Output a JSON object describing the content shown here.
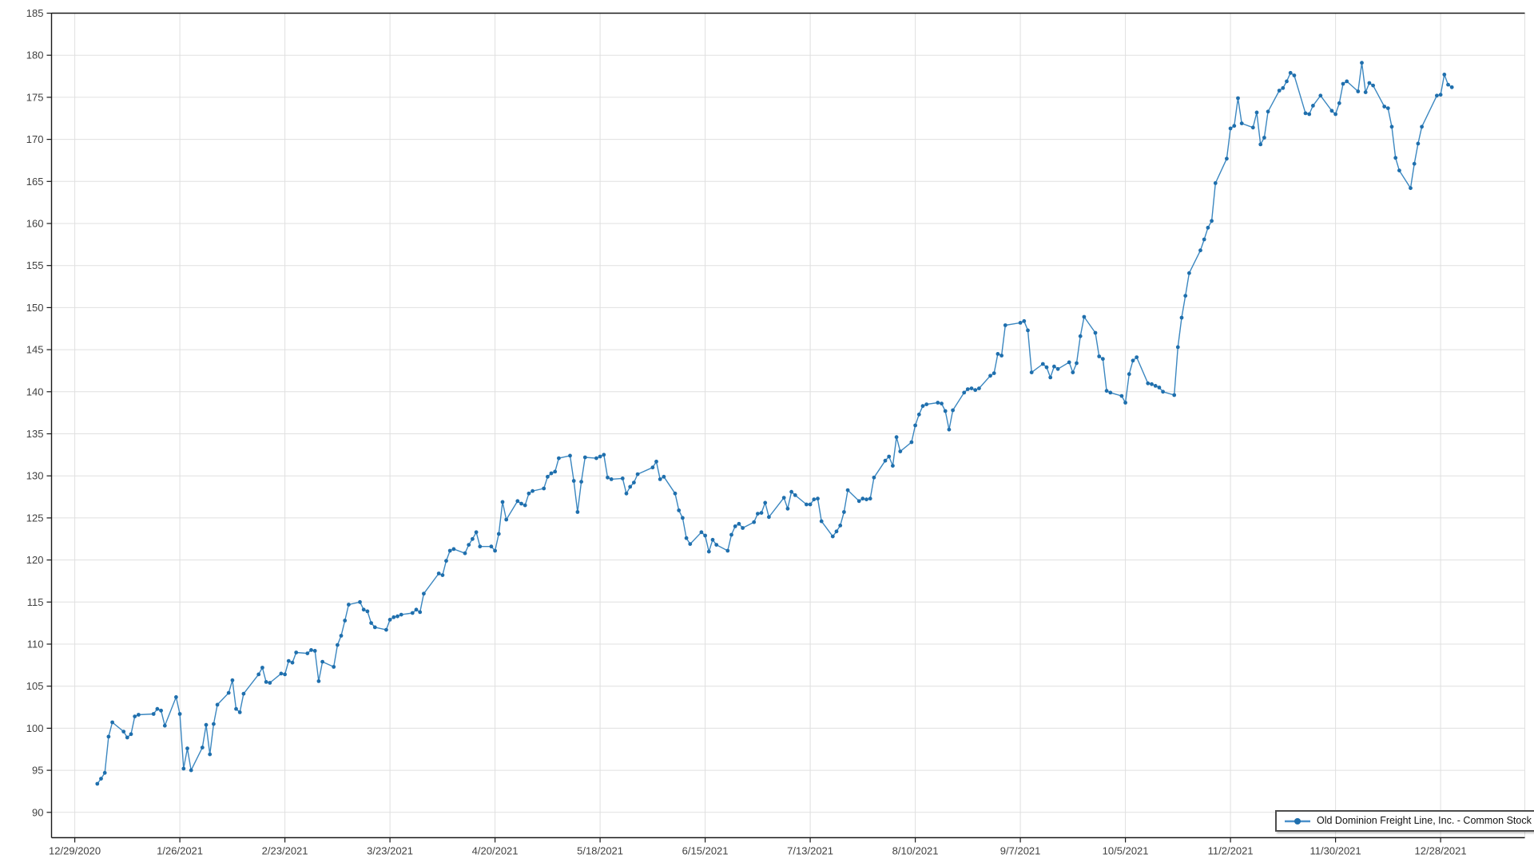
{
  "legend": {
    "label": "Old Dominion Freight Line, Inc. - Common Stock"
  },
  "colors": {
    "line": "#3b87c0",
    "marker": "#1f6fad",
    "grid": "#e0e0e0",
    "axis": "#1a1a1a",
    "tick_label": "#404040",
    "legend_border": "#4d4d4d"
  },
  "chart_data": {
    "type": "line",
    "title": "",
    "xlabel": "",
    "ylabel": "",
    "grid": true,
    "legend_position": "bottom-right",
    "y_ticks": [
      90,
      95,
      100,
      105,
      110,
      115,
      120,
      125,
      130,
      135,
      140,
      145,
      150,
      155,
      160,
      165,
      170,
      175,
      180,
      185
    ],
    "ylim": [
      87.05,
      185
    ],
    "x_axis_start": "2020-12-29",
    "x_tick_interval_days": 28,
    "x_tick_labels": [
      "12/29/2020",
      "1/26/2021",
      "2/23/2021",
      "3/23/2021",
      "4/20/2021",
      "5/18/2021",
      "6/15/2021",
      "7/13/2021",
      "8/10/2021",
      "9/7/2021",
      "10/5/2021",
      "11/2/2021",
      "11/30/2021",
      "12/28/2021"
    ],
    "series": [
      {
        "name": "Old Dominion Freight Line, Inc. - Common Stock",
        "points": [
          [
            "2021-01-04",
            93.4
          ],
          [
            "2021-01-05",
            94.0
          ],
          [
            "2021-01-06",
            94.7
          ],
          [
            "2021-01-07",
            99.0
          ],
          [
            "2021-01-08",
            100.7
          ],
          [
            "2021-01-11",
            99.6
          ],
          [
            "2021-01-12",
            98.9
          ],
          [
            "2021-01-13",
            99.3
          ],
          [
            "2021-01-14",
            101.4
          ],
          [
            "2021-01-15",
            101.6
          ],
          [
            "2021-01-19",
            101.7
          ],
          [
            "2021-01-20",
            102.3
          ],
          [
            "2021-01-21",
            102.1
          ],
          [
            "2021-01-22",
            100.3
          ],
          [
            "2021-01-25",
            103.7
          ],
          [
            "2021-01-26",
            101.7
          ],
          [
            "2021-01-27",
            95.2
          ],
          [
            "2021-01-28",
            97.6
          ],
          [
            "2021-01-29",
            95.0
          ],
          [
            "2021-02-01",
            97.7
          ],
          [
            "2021-02-02",
            100.4
          ],
          [
            "2021-02-03",
            96.9
          ],
          [
            "2021-02-04",
            100.5
          ],
          [
            "2021-02-05",
            102.8
          ],
          [
            "2021-02-08",
            104.2
          ],
          [
            "2021-02-09",
            105.7
          ],
          [
            "2021-02-10",
            102.3
          ],
          [
            "2021-02-11",
            101.9
          ],
          [
            "2021-02-12",
            104.1
          ],
          [
            "2021-02-16",
            106.4
          ],
          [
            "2021-02-17",
            107.2
          ],
          [
            "2021-02-18",
            105.5
          ],
          [
            "2021-02-19",
            105.4
          ],
          [
            "2021-02-22",
            106.5
          ],
          [
            "2021-02-23",
            106.4
          ],
          [
            "2021-02-24",
            108.0
          ],
          [
            "2021-02-25",
            107.8
          ],
          [
            "2021-02-26",
            109.0
          ],
          [
            "2021-03-01",
            108.9
          ],
          [
            "2021-03-02",
            109.3
          ],
          [
            "2021-03-03",
            109.2
          ],
          [
            "2021-03-04",
            105.6
          ],
          [
            "2021-03-05",
            107.9
          ],
          [
            "2021-03-08",
            107.3
          ],
          [
            "2021-03-09",
            109.9
          ],
          [
            "2021-03-10",
            111.0
          ],
          [
            "2021-03-11",
            112.8
          ],
          [
            "2021-03-12",
            114.7
          ],
          [
            "2021-03-15",
            115.0
          ],
          [
            "2021-03-16",
            114.1
          ],
          [
            "2021-03-17",
            113.9
          ],
          [
            "2021-03-18",
            112.5
          ],
          [
            "2021-03-19",
            112.0
          ],
          [
            "2021-03-22",
            111.7
          ],
          [
            "2021-03-23",
            112.9
          ],
          [
            "2021-03-24",
            113.2
          ],
          [
            "2021-03-25",
            113.3
          ],
          [
            "2021-03-26",
            113.5
          ],
          [
            "2021-03-29",
            113.7
          ],
          [
            "2021-03-30",
            114.1
          ],
          [
            "2021-03-31",
            113.8
          ],
          [
            "2021-04-01",
            116.0
          ],
          [
            "2021-04-05",
            118.4
          ],
          [
            "2021-04-06",
            118.2
          ],
          [
            "2021-04-07",
            119.9
          ],
          [
            "2021-04-08",
            121.1
          ],
          [
            "2021-04-09",
            121.3
          ],
          [
            "2021-04-12",
            120.8
          ],
          [
            "2021-04-13",
            121.8
          ],
          [
            "2021-04-14",
            122.5
          ],
          [
            "2021-04-15",
            123.3
          ],
          [
            "2021-04-16",
            121.6
          ],
          [
            "2021-04-19",
            121.6
          ],
          [
            "2021-04-20",
            121.1
          ],
          [
            "2021-04-21",
            123.1
          ],
          [
            "2021-04-22",
            126.9
          ],
          [
            "2021-04-23",
            124.8
          ],
          [
            "2021-04-26",
            127.0
          ],
          [
            "2021-04-27",
            126.7
          ],
          [
            "2021-04-28",
            126.5
          ],
          [
            "2021-04-29",
            127.9
          ],
          [
            "2021-04-30",
            128.2
          ],
          [
            "2021-05-03",
            128.5
          ],
          [
            "2021-05-04",
            129.9
          ],
          [
            "2021-05-05",
            130.3
          ],
          [
            "2021-05-06",
            130.5
          ],
          [
            "2021-05-07",
            132.1
          ],
          [
            "2021-05-10",
            132.4
          ],
          [
            "2021-05-11",
            129.4
          ],
          [
            "2021-05-12",
            125.7
          ],
          [
            "2021-05-13",
            129.3
          ],
          [
            "2021-05-14",
            132.2
          ],
          [
            "2021-05-17",
            132.1
          ],
          [
            "2021-05-18",
            132.3
          ],
          [
            "2021-05-19",
            132.5
          ],
          [
            "2021-05-20",
            129.8
          ],
          [
            "2021-05-21",
            129.6
          ],
          [
            "2021-05-24",
            129.7
          ],
          [
            "2021-05-25",
            127.9
          ],
          [
            "2021-05-26",
            128.7
          ],
          [
            "2021-05-27",
            129.2
          ],
          [
            "2021-05-28",
            130.2
          ],
          [
            "2021-06-01",
            131.0
          ],
          [
            "2021-06-02",
            131.7
          ],
          [
            "2021-06-03",
            129.6
          ],
          [
            "2021-06-04",
            129.9
          ],
          [
            "2021-06-07",
            127.9
          ],
          [
            "2021-06-08",
            125.9
          ],
          [
            "2021-06-09",
            125.0
          ],
          [
            "2021-06-10",
            122.6
          ],
          [
            "2021-06-11",
            121.9
          ],
          [
            "2021-06-14",
            123.3
          ],
          [
            "2021-06-15",
            122.9
          ],
          [
            "2021-06-16",
            121.0
          ],
          [
            "2021-06-17",
            122.4
          ],
          [
            "2021-06-18",
            121.8
          ],
          [
            "2021-06-21",
            121.1
          ],
          [
            "2021-06-22",
            123.0
          ],
          [
            "2021-06-23",
            124.0
          ],
          [
            "2021-06-24",
            124.3
          ],
          [
            "2021-06-25",
            123.8
          ],
          [
            "2021-06-28",
            124.5
          ],
          [
            "2021-06-29",
            125.5
          ],
          [
            "2021-06-30",
            125.6
          ],
          [
            "2021-07-01",
            126.8
          ],
          [
            "2021-07-02",
            125.1
          ],
          [
            "2021-07-06",
            127.4
          ],
          [
            "2021-07-07",
            126.1
          ],
          [
            "2021-07-08",
            128.1
          ],
          [
            "2021-07-09",
            127.7
          ],
          [
            "2021-07-12",
            126.6
          ],
          [
            "2021-07-13",
            126.6
          ],
          [
            "2021-07-14",
            127.2
          ],
          [
            "2021-07-15",
            127.3
          ],
          [
            "2021-07-16",
            124.6
          ],
          [
            "2021-07-19",
            122.8
          ],
          [
            "2021-07-20",
            123.4
          ],
          [
            "2021-07-21",
            124.1
          ],
          [
            "2021-07-22",
            125.7
          ],
          [
            "2021-07-23",
            128.3
          ],
          [
            "2021-07-26",
            127.0
          ],
          [
            "2021-07-27",
            127.3
          ],
          [
            "2021-07-28",
            127.2
          ],
          [
            "2021-07-29",
            127.3
          ],
          [
            "2021-07-30",
            129.8
          ],
          [
            "2021-08-02",
            131.8
          ],
          [
            "2021-08-03",
            132.3
          ],
          [
            "2021-08-04",
            131.2
          ],
          [
            "2021-08-05",
            134.6
          ],
          [
            "2021-08-06",
            132.9
          ],
          [
            "2021-08-09",
            134.0
          ],
          [
            "2021-08-10",
            136.0
          ],
          [
            "2021-08-11",
            137.3
          ],
          [
            "2021-08-12",
            138.3
          ],
          [
            "2021-08-13",
            138.5
          ],
          [
            "2021-08-16",
            138.7
          ],
          [
            "2021-08-17",
            138.6
          ],
          [
            "2021-08-18",
            137.7
          ],
          [
            "2021-08-19",
            135.5
          ],
          [
            "2021-08-20",
            137.8
          ],
          [
            "2021-08-23",
            139.9
          ],
          [
            "2021-08-24",
            140.3
          ],
          [
            "2021-08-25",
            140.4
          ],
          [
            "2021-08-26",
            140.2
          ],
          [
            "2021-08-27",
            140.4
          ],
          [
            "2021-08-30",
            141.9
          ],
          [
            "2021-08-31",
            142.2
          ],
          [
            "2021-09-01",
            144.5
          ],
          [
            "2021-09-02",
            144.3
          ],
          [
            "2021-09-03",
            147.9
          ],
          [
            "2021-09-07",
            148.2
          ],
          [
            "2021-09-08",
            148.4
          ],
          [
            "2021-09-09",
            147.3
          ],
          [
            "2021-09-10",
            142.3
          ],
          [
            "2021-09-13",
            143.3
          ],
          [
            "2021-09-14",
            142.9
          ],
          [
            "2021-09-15",
            141.7
          ],
          [
            "2021-09-16",
            143.0
          ],
          [
            "2021-09-17",
            142.7
          ],
          [
            "2021-09-20",
            143.5
          ],
          [
            "2021-09-21",
            142.3
          ],
          [
            "2021-09-22",
            143.4
          ],
          [
            "2021-09-23",
            146.6
          ],
          [
            "2021-09-24",
            148.9
          ],
          [
            "2021-09-27",
            147.0
          ],
          [
            "2021-09-28",
            144.2
          ],
          [
            "2021-09-29",
            143.9
          ],
          [
            "2021-09-30",
            140.1
          ],
          [
            "2021-10-01",
            139.9
          ],
          [
            "2021-10-04",
            139.5
          ],
          [
            "2021-10-05",
            138.7
          ],
          [
            "2021-10-06",
            142.1
          ],
          [
            "2021-10-07",
            143.7
          ],
          [
            "2021-10-08",
            144.1
          ],
          [
            "2021-10-11",
            141.0
          ],
          [
            "2021-10-12",
            140.9
          ],
          [
            "2021-10-13",
            140.7
          ],
          [
            "2021-10-14",
            140.5
          ],
          [
            "2021-10-15",
            140.0
          ],
          [
            "2021-10-18",
            139.6
          ],
          [
            "2021-10-19",
            145.3
          ],
          [
            "2021-10-20",
            148.8
          ],
          [
            "2021-10-21",
            151.4
          ],
          [
            "2021-10-22",
            154.1
          ],
          [
            "2021-10-25",
            156.8
          ],
          [
            "2021-10-26",
            158.1
          ],
          [
            "2021-10-27",
            159.5
          ],
          [
            "2021-10-28",
            160.3
          ],
          [
            "2021-10-29",
            164.8
          ],
          [
            "2021-11-01",
            167.7
          ],
          [
            "2021-11-02",
            171.3
          ],
          [
            "2021-11-03",
            171.6
          ],
          [
            "2021-11-04",
            174.9
          ],
          [
            "2021-11-05",
            171.9
          ],
          [
            "2021-11-08",
            171.4
          ],
          [
            "2021-11-09",
            173.2
          ],
          [
            "2021-11-10",
            169.4
          ],
          [
            "2021-11-11",
            170.2
          ],
          [
            "2021-11-12",
            173.3
          ],
          [
            "2021-11-15",
            175.8
          ],
          [
            "2021-11-16",
            176.1
          ],
          [
            "2021-11-17",
            176.9
          ],
          [
            "2021-11-18",
            177.9
          ],
          [
            "2021-11-19",
            177.6
          ],
          [
            "2021-11-22",
            173.1
          ],
          [
            "2021-11-23",
            173.0
          ],
          [
            "2021-11-24",
            174.0
          ],
          [
            "2021-11-26",
            175.2
          ],
          [
            "2021-11-29",
            173.4
          ],
          [
            "2021-11-30",
            173.0
          ],
          [
            "2021-12-01",
            174.3
          ],
          [
            "2021-12-02",
            176.6
          ],
          [
            "2021-12-03",
            176.9
          ],
          [
            "2021-12-06",
            175.7
          ],
          [
            "2021-12-07",
            179.1
          ],
          [
            "2021-12-08",
            175.6
          ],
          [
            "2021-12-09",
            176.7
          ],
          [
            "2021-12-10",
            176.4
          ],
          [
            "2021-12-13",
            173.9
          ],
          [
            "2021-12-14",
            173.7
          ],
          [
            "2021-12-15",
            171.5
          ],
          [
            "2021-12-16",
            167.8
          ],
          [
            "2021-12-17",
            166.3
          ],
          [
            "2021-12-20",
            164.2
          ],
          [
            "2021-12-21",
            167.1
          ],
          [
            "2021-12-22",
            169.5
          ],
          [
            "2021-12-23",
            171.5
          ],
          [
            "2021-12-27",
            175.2
          ],
          [
            "2021-12-28",
            175.3
          ],
          [
            "2021-12-29",
            177.7
          ],
          [
            "2021-12-30",
            176.5
          ],
          [
            "2021-12-31",
            176.2
          ]
        ]
      }
    ]
  }
}
